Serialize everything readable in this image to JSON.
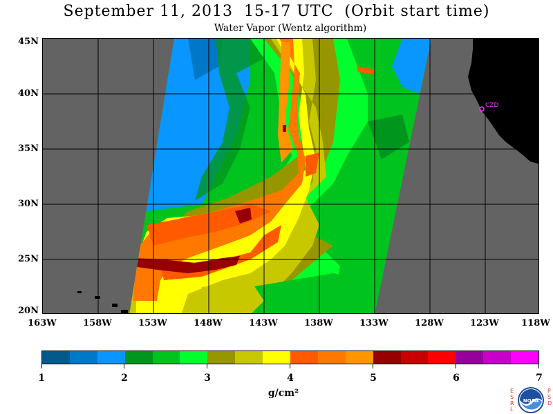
{
  "header": {
    "title": "September 11, 2013  15-17 UTC  (Orbit start time)",
    "subtitle": "Water Vapor (Wentz algorithm)"
  },
  "map": {
    "lat_labels": [
      "45N",
      "40N",
      "35N",
      "30N",
      "25N",
      "20N"
    ],
    "lon_labels": [
      "163W",
      "158W",
      "153W",
      "148W",
      "143W",
      "138W",
      "133W",
      "128W",
      "123W",
      "118W"
    ],
    "station_label": "CZD",
    "colors": {
      "no_data": "#636363",
      "land": "#000000",
      "grid": "#000000",
      "station": "#ff33ff"
    }
  },
  "colorbar": {
    "colors": [
      "#005a8c",
      "#0078c8",
      "#0a96ff",
      "#00961e",
      "#00c31e",
      "#00ff2d",
      "#969600",
      "#c8c800",
      "#ffff00",
      "#ff5a00",
      "#ff7800",
      "#ff9600",
      "#960000",
      "#c80000",
      "#ff0000",
      "#96009b",
      "#c800c8",
      "#ff00ff"
    ],
    "tick_labels": [
      "1",
      "2",
      "3",
      "4",
      "5",
      "6",
      "7"
    ],
    "units": "g/cm²"
  },
  "logo": {
    "left_text": "ESRL",
    "right_text": "PSD",
    "center_text": "NOAA"
  }
}
